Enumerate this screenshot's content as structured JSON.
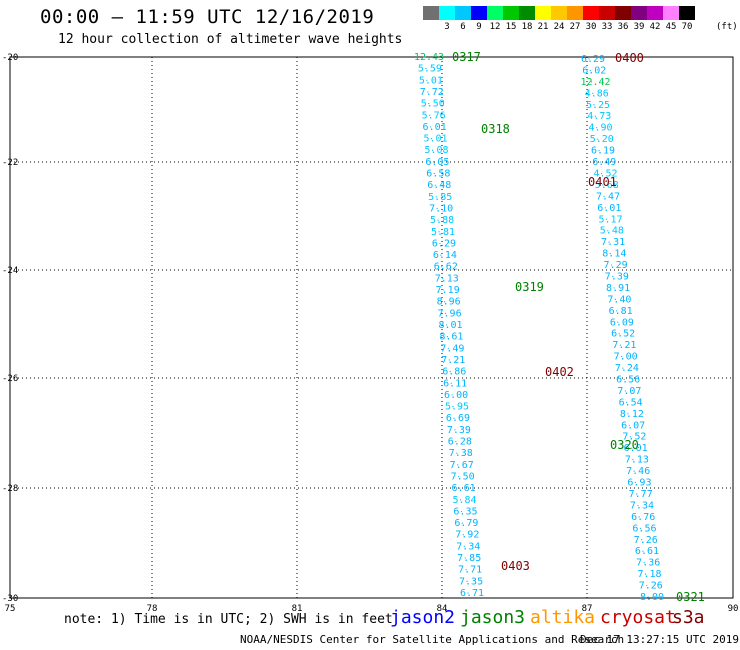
{
  "header": {
    "title": "00:00 — 11:59 UTC 12/16/2019",
    "subtitle": "12 hour collection of altimeter wave heights"
  },
  "legend": {
    "unit": "(ft)",
    "colors": [
      "#707070",
      "#00ffff",
      "#00c8ff",
      "#0000ff",
      "#00ff64",
      "#00c800",
      "#008c00",
      "#ffff00",
      "#ffc800",
      "#ff9600",
      "#ff0000",
      "#c80000",
      "#800000",
      "#800080",
      "#c000c0",
      "#ff80ff",
      "#000000"
    ],
    "labels": [
      "",
      "3",
      "6",
      "9",
      "12",
      "15",
      "18",
      "21",
      "24",
      "27",
      "30",
      "33",
      "36",
      "39",
      "42",
      "45",
      "70"
    ]
  },
  "axes": {
    "y_labels": [
      "-20",
      "-22",
      "-24",
      "-26",
      "-28",
      "-30"
    ],
    "x_labels": [
      "75",
      "78",
      "81",
      "84",
      "87",
      "90"
    ]
  },
  "track_a_values": [
    "12.43",
    "5.59",
    "5.01",
    "7.72",
    "5.50",
    "5.76",
    "6.01",
    "5.01",
    "5.08",
    "6.05",
    "6.58",
    "6.48",
    "5.85",
    "7.10",
    "5.88",
    "5.81",
    "6.29",
    "6.14",
    "6.62",
    "7.13",
    "7.19",
    "8.96",
    "7.96",
    "8.01",
    "8.61",
    "7.49",
    "7.21",
    "6.86",
    "6.11",
    "6.00",
    "5.95",
    "6.69",
    "7.39",
    "6.28",
    "7.38",
    "7.67",
    "7.50",
    "6.61",
    "5.84",
    "6.35",
    "6.79",
    "7.92",
    "7.34",
    "7.85",
    "7.71",
    "7.35",
    "6.71"
  ],
  "track_b_values": [
    "6.29",
    "6.02",
    "12.42",
    "4.86",
    "5.25",
    "4.73",
    "4.90",
    "5.20",
    "6.19",
    "6.49",
    "4.52",
    "5.68",
    "7.47",
    "6.01",
    "5.17",
    "5.48",
    "7.31",
    "8.14",
    "7.29",
    "7.39",
    "8.91",
    "7.40",
    "6.81",
    "6.09",
    "6.52",
    "7.21",
    "7.00",
    "7.24",
    "6.56",
    "7.07",
    "6.54",
    "8.12",
    "6.07",
    "7.52",
    "6.01",
    "7.13",
    "7.46",
    "6.93",
    "7.77",
    "7.34",
    "6.76",
    "6.56",
    "7.26",
    "6.61",
    "7.36",
    "7.18",
    "7.26",
    "8.00"
  ],
  "pass_labels": [
    {
      "text": "0317",
      "color": "#008000"
    },
    {
      "text": "0400",
      "color": "#800000"
    },
    {
      "text": "0318",
      "color": "#008000"
    },
    {
      "text": "0401",
      "color": "#800000"
    },
    {
      "text": "0319",
      "color": "#008000"
    },
    {
      "text": "0402",
      "color": "#800000"
    },
    {
      "text": "0320",
      "color": "#008000"
    },
    {
      "text": "0403",
      "color": "#800000"
    },
    {
      "text": "0321",
      "color": "#008000"
    }
  ],
  "footer": {
    "note": "note: 1) Time is in UTC; 2) SWH is in feet",
    "satellites": [
      {
        "name": "jason2",
        "color": "#0000ff"
      },
      {
        "name": "jason3",
        "color": "#008000"
      },
      {
        "name": "altika",
        "color": "#ff9600"
      },
      {
        "name": "cryosat",
        "color": "#c80000"
      },
      {
        "name": "s3a",
        "color": "#800000"
      }
    ],
    "credit": "NOAA/NESDIS Center for Satellite Applications and Research",
    "stamp": "Dec 17 13:27:15 UTC 2019"
  }
}
